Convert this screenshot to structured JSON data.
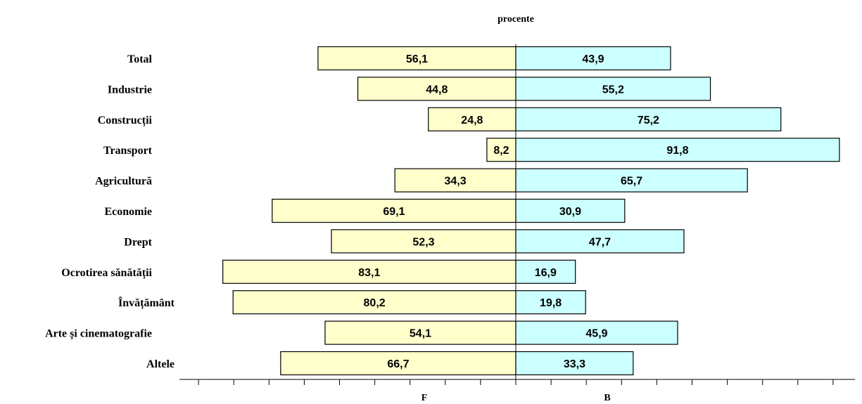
{
  "chart_data": {
    "type": "bar",
    "orientation": "horizontal",
    "layout": "diverging",
    "title": "procente",
    "categories": [
      "Total",
      "Industrie",
      "Construcții",
      "Transport",
      "Agricultură",
      "Economie",
      "Drept",
      "Ocrotirea sănătății",
      "Învățământ",
      "Arte și cinematografie",
      "Altele"
    ],
    "series": [
      {
        "name": "F",
        "direction": "left",
        "color": "#ffffcc",
        "values": [
          56.1,
          44.8,
          24.8,
          8.2,
          34.3,
          69.1,
          52.3,
          83.1,
          80.2,
          54.1,
          66.7
        ],
        "value_labels": [
          "56,1",
          "44,8",
          "24,8",
          "8,2",
          "34,3",
          "69,1",
          "52,3",
          "83,1",
          "80,2",
          "54,1",
          "66,7"
        ]
      },
      {
        "name": "B",
        "direction": "right",
        "color": "#ccffff",
        "values": [
          43.9,
          55.2,
          75.2,
          91.8,
          65.7,
          30.9,
          47.7,
          16.9,
          19.8,
          45.9,
          33.3
        ],
        "value_labels": [
          "43,9",
          "55,2",
          "75,2",
          "91,8",
          "65,7",
          "30,9",
          "47,7",
          "16,9",
          "19,8",
          "45,9",
          "33,3"
        ]
      }
    ],
    "xlim": [
      -90,
      97
    ],
    "tick_step": 10,
    "grid": false,
    "legend": "none"
  }
}
